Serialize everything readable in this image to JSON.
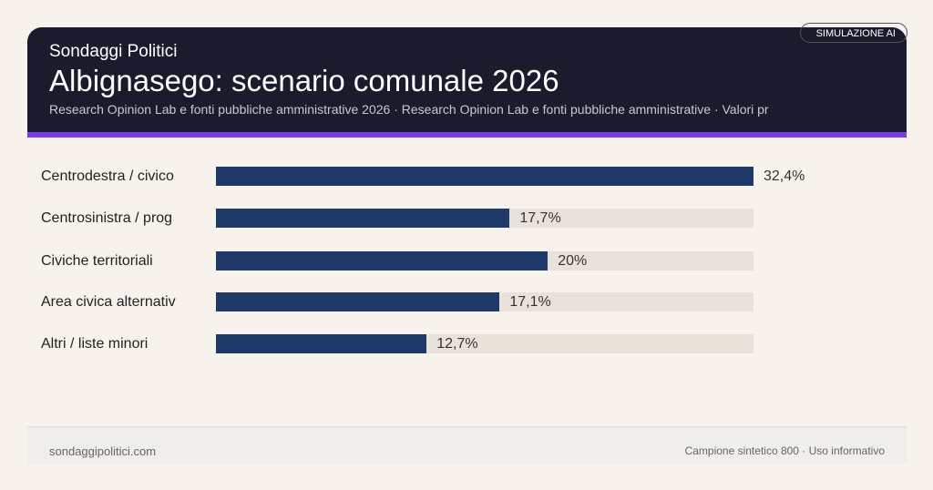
{
  "header": {
    "kicker": "Sondaggi Politici",
    "title": "Albignasego: scenario comunale 2026",
    "subtitle": "Research Opinion Lab e fonti pubbliche amministrative 2026 · Research Opinion Lab e fonti pubbliche amministrative · Valori pr",
    "badge": "SIMULAZIONE AI"
  },
  "colors": {
    "bar": "#1e3a6b",
    "track": "#e8e2da",
    "accent": "#7c3aed",
    "header_bg": "#1b1b2e"
  },
  "chart_data": {
    "type": "bar",
    "orientation": "horizontal",
    "categories": [
      "Centrodestra / civico",
      "Centrosinistra / prog",
      "Civiche territoriali",
      "Area civica alternativ",
      "Altri / liste minori"
    ],
    "values": [
      32.4,
      17.7,
      20,
      17.1,
      12.7
    ],
    "value_labels": [
      "32,4%",
      "17,7%",
      "20%",
      "17,1%",
      "12,7%"
    ],
    "xlim": [
      0,
      32.4
    ],
    "grid": false
  },
  "footer": {
    "left": "sondaggipolitici.com",
    "right": "Campione sintetico 800 · Uso informativo"
  }
}
